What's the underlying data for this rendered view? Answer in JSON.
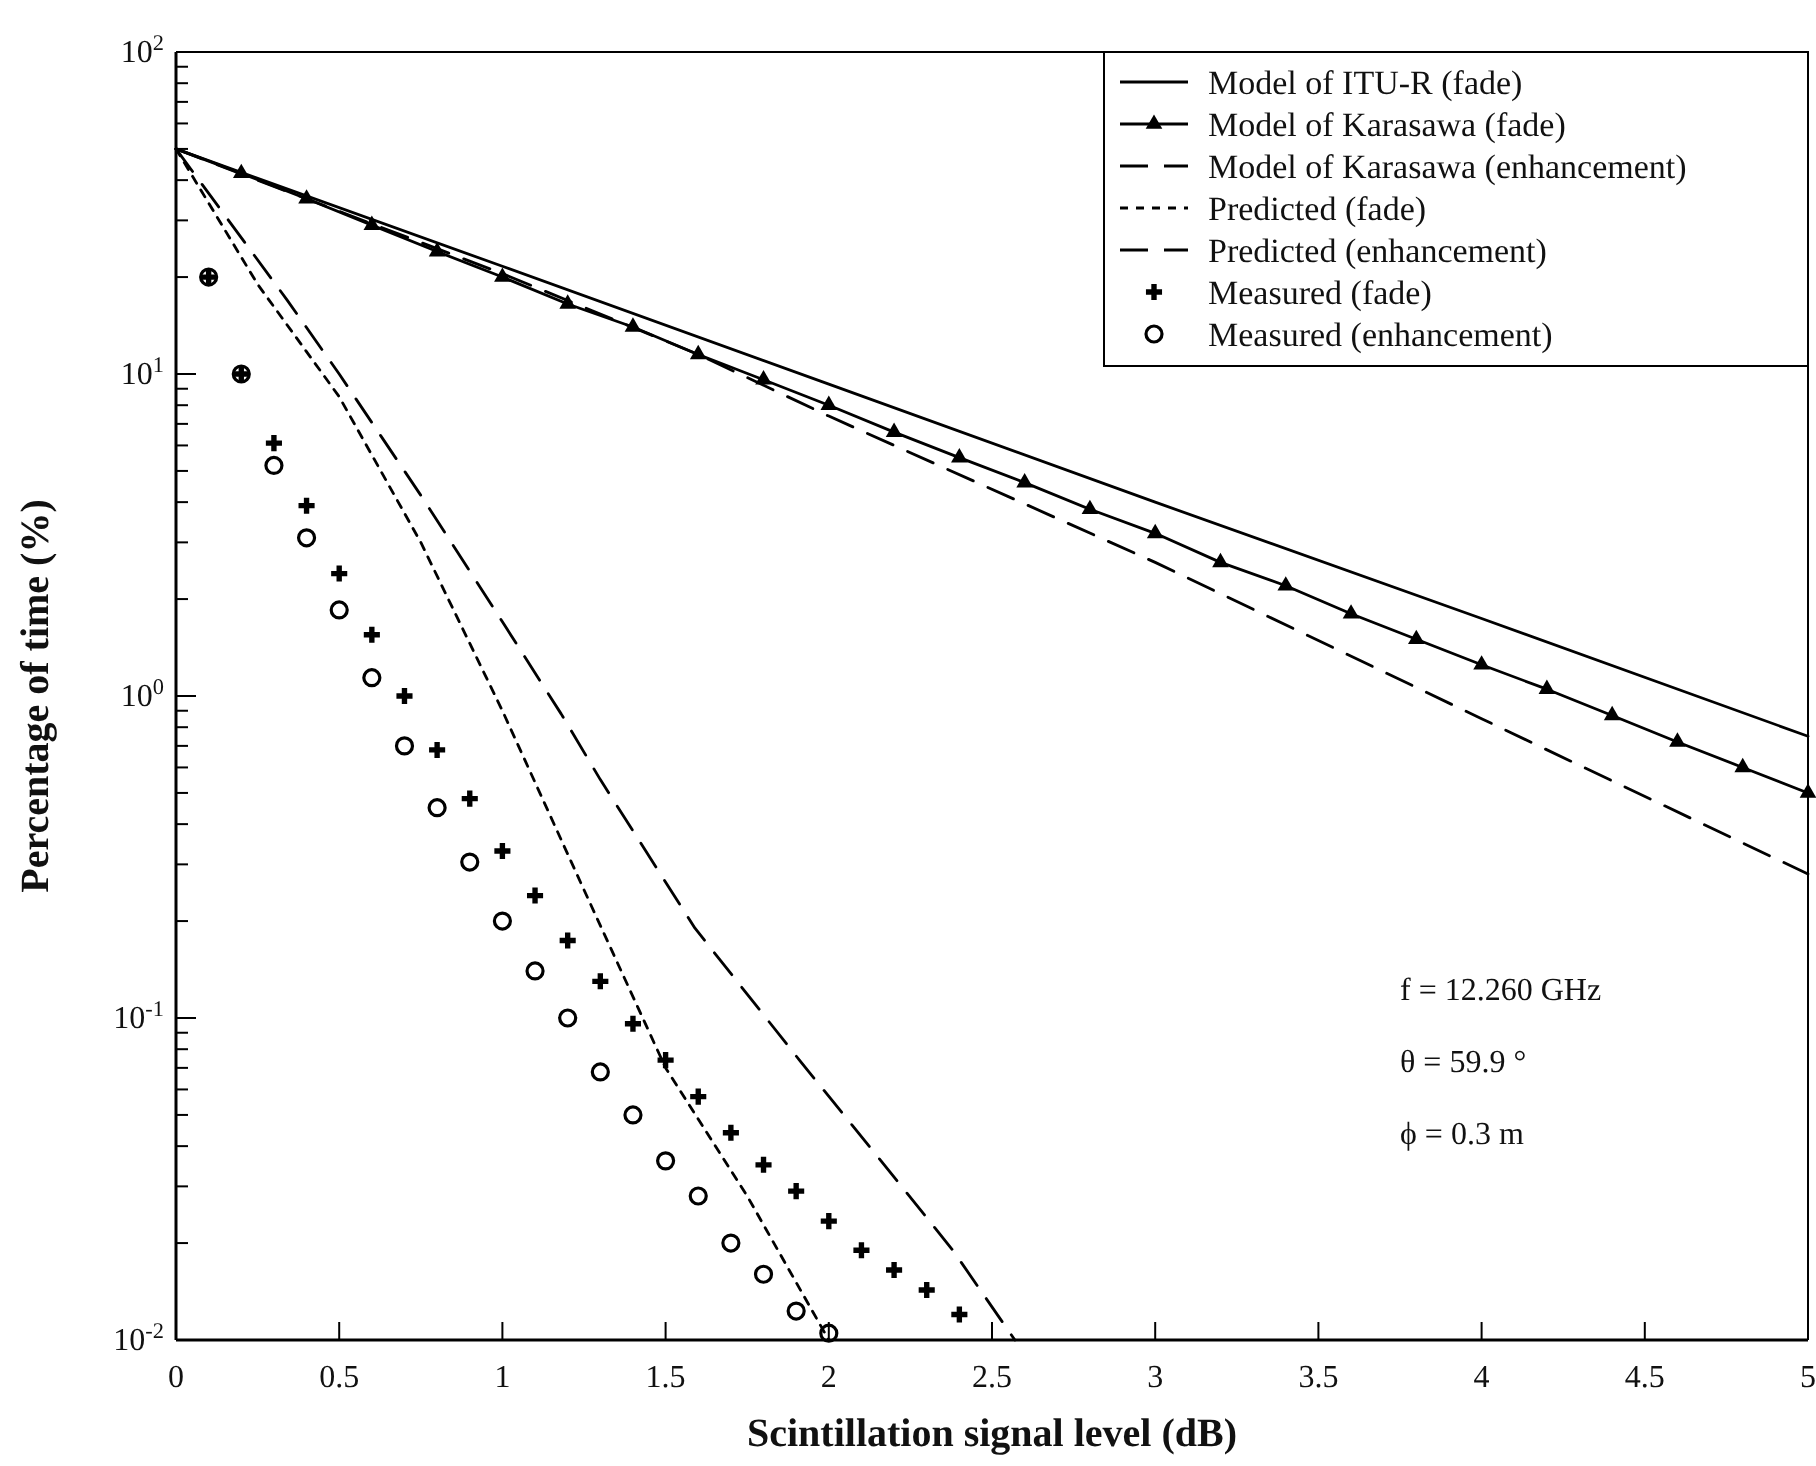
{
  "chart_data": {
    "type": "line",
    "xlabel": "Scintillation signal level (dB)",
    "ylabel": "Percentage of time (%)",
    "log": "y",
    "grid": false,
    "legend": "top right",
    "xlim": [
      0,
      5
    ],
    "xticks": [
      0,
      0.5,
      1,
      1.5,
      2,
      2.5,
      3,
      3.5,
      4,
      4.5,
      5
    ],
    "ylim": [
      0.01,
      100
    ],
    "yticks": [
      {
        "value": 0.01,
        "label": "10$^{-2}$"
      },
      {
        "value": 0.02,
        "label": null
      },
      {
        "value": 0.03,
        "label": null
      },
      {
        "value": 0.04,
        "label": null
      },
      {
        "value": 0.05,
        "label": null
      },
      {
        "value": 0.06,
        "label": null
      },
      {
        "value": 0.07,
        "label": null
      },
      {
        "value": 0.08,
        "label": null
      },
      {
        "value": 0.09,
        "label": null
      },
      {
        "value": 0.1,
        "label": "10$^{-1}$"
      },
      {
        "value": 0.2,
        "label": null
      },
      {
        "value": 0.3,
        "label": null
      },
      {
        "value": 0.4,
        "label": null
      },
      {
        "value": 0.5,
        "label": null
      },
      {
        "value": 0.6,
        "label": null
      },
      {
        "value": 0.7,
        "label": null
      },
      {
        "value": 0.8,
        "label": null
      },
      {
        "value": 0.9,
        "label": null
      },
      {
        "value": 1,
        "label": "10$^{0}$"
      },
      {
        "value": 2,
        "label": null
      },
      {
        "value": 3,
        "label": null
      },
      {
        "value": 4,
        "label": null
      },
      {
        "value": 5,
        "label": null
      },
      {
        "value": 6,
        "label": null
      },
      {
        "value": 7,
        "label": null
      },
      {
        "value": 8,
        "label": null
      },
      {
        "value": 9,
        "label": null
      },
      {
        "value": 10,
        "label": "10$^{1}$"
      },
      {
        "value": 20,
        "label": null
      },
      {
        "value": 30,
        "label": null
      },
      {
        "value": 40,
        "label": null
      },
      {
        "value": 50,
        "label": null
      },
      {
        "value": 60,
        "label": null
      },
      {
        "value": 70,
        "label": null
      },
      {
        "value": 80,
        "label": null
      },
      {
        "value": 90,
        "label": null
      },
      {
        "value": 100,
        "label": "10$^{2}$"
      }
    ],
    "series": [
      {
        "name": "Model of ITU-R (fade)",
        "line_style": "solid",
        "marker": "none",
        "color": "#000000",
        "x": [
          0,
          1,
          2,
          3,
          4,
          5
        ],
        "values": [
          50,
          21.6,
          9.3,
          4.0,
          1.74,
          0.75
        ]
      },
      {
        "name": "Model of Karasawa (fade)",
        "line_style": "solid",
        "marker": "triangle",
        "color": "#000000",
        "x": [
          0,
          0.2,
          0.4,
          0.6,
          0.8,
          1,
          1.2,
          1.4,
          1.6,
          1.8,
          2,
          2.2,
          2.4,
          2.6,
          2.8,
          3,
          3.2,
          3.4,
          3.6,
          3.8,
          4,
          4.2,
          4.4,
          4.6,
          4.8,
          5
        ],
        "values": [
          50,
          42,
          35,
          29,
          24,
          20,
          16.5,
          14,
          11.5,
          9.6,
          8.0,
          6.6,
          5.5,
          4.6,
          3.8,
          3.2,
          2.6,
          2.2,
          1.8,
          1.5,
          1.25,
          1.05,
          0.87,
          0.72,
          0.6,
          0.5
        ]
      },
      {
        "name": "Model of Karasawa (enhancement)",
        "line_style": "dashed",
        "marker": "none",
        "color": "#000000",
        "x": [
          0,
          1,
          1.6,
          2,
          3,
          4,
          5
        ],
        "values": [
          50,
          20.5,
          11.5,
          7.4,
          2.6,
          0.85,
          0.28
        ]
      },
      {
        "name": "Predicted (fade)",
        "line_style": "dotted",
        "marker": "none",
        "color": "#000000",
        "x": [
          0,
          0.25,
          0.5,
          0.75,
          1,
          1.25,
          1.5,
          1.75,
          2
        ],
        "values": [
          50,
          19,
          8.5,
          3.0,
          0.9,
          0.25,
          0.07,
          0.028,
          0.01
        ]
      },
      {
        "name": "Predicted (enhancement)",
        "line_style": "dashed",
        "marker": "none",
        "color": "#000000",
        "x": [
          0,
          0.34,
          0.5,
          0.75,
          1,
          1.18,
          1.3,
          1.59,
          1.91,
          2.16,
          2.38,
          2.57
        ],
        "values": [
          50,
          17,
          10,
          4.2,
          1.7,
          0.88,
          0.55,
          0.19,
          0.074,
          0.036,
          0.019,
          0.01
        ]
      },
      {
        "name": "Measured (fade)",
        "type": "scatter",
        "marker": "cross",
        "color": "#000000",
        "x": [
          0.1,
          0.2,
          0.3,
          0.4,
          0.5,
          0.6,
          0.7,
          0.8,
          0.9,
          1.0,
          1.1,
          1.2,
          1.3,
          1.4,
          1.5,
          1.6,
          1.7,
          1.8,
          1.9,
          2.0,
          2.1,
          2.2,
          2.3,
          2.4
        ],
        "values": [
          20,
          10,
          6.1,
          3.9,
          2.4,
          1.55,
          1.0,
          0.68,
          0.48,
          0.33,
          0.24,
          0.174,
          0.13,
          0.096,
          0.074,
          0.057,
          0.044,
          0.035,
          0.029,
          0.0234,
          0.019,
          0.0165,
          0.0143,
          0.012
        ]
      },
      {
        "name": "Measured (enhancement)",
        "type": "scatter",
        "marker": "circle",
        "color": "#000000",
        "x": [
          0.1,
          0.2,
          0.3,
          0.4,
          0.5,
          0.6,
          0.7,
          0.8,
          0.9,
          1.0,
          1.1,
          1.2,
          1.3,
          1.4,
          1.5,
          1.6,
          1.7,
          1.8,
          1.9,
          2.0
        ],
        "values": [
          20,
          10,
          5.2,
          3.1,
          1.85,
          1.14,
          0.7,
          0.45,
          0.305,
          0.2,
          0.14,
          0.1,
          0.068,
          0.05,
          0.036,
          0.028,
          0.02,
          0.016,
          0.0123,
          0.0105
        ]
      }
    ],
    "annotations": [
      "f = 12.260 GHz",
      "θ = 59.9 °",
      "ϕ = 0.3 m"
    ]
  }
}
